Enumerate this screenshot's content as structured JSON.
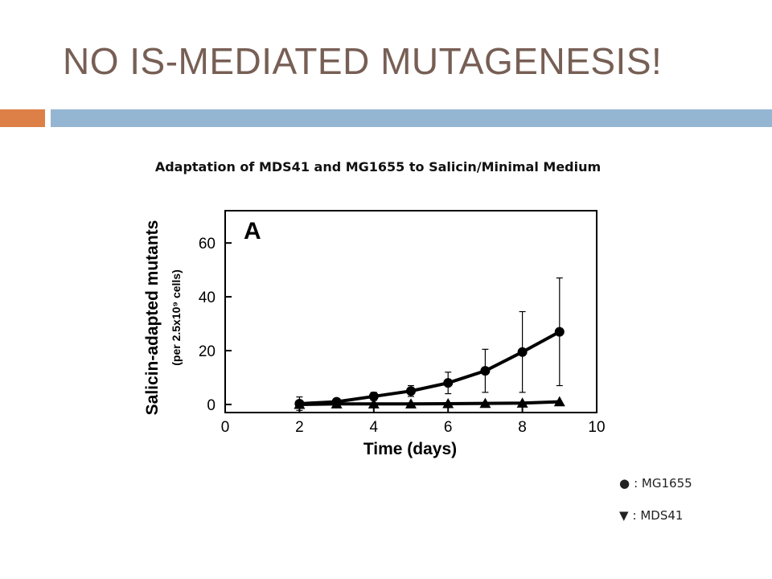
{
  "slide": {
    "title": "NO IS-MEDIATED MUTAGENESIS!",
    "accent_colors": {
      "title_text": "#775f55",
      "bar_left": "#dd8047",
      "bar_right": "#94b6d2"
    }
  },
  "chart_data": {
    "type": "line",
    "title": "Adaptation of MDS41 and MG1655 to Salicin/Minimal Medium",
    "panel_label": "A",
    "xlabel": "Time (days)",
    "ylabel": "Salicin-adapted mutants",
    "ylabel_sub": "(per 2.5x10⁹ cells)",
    "xlim": [
      0,
      10
    ],
    "ylim": [
      -3,
      72
    ],
    "xticks": [
      0,
      2,
      4,
      6,
      8,
      10
    ],
    "yticks": [
      0,
      20,
      40,
      60
    ],
    "grid": false,
    "series": [
      {
        "name": "MG1655",
        "marker": "circle",
        "x": [
          2,
          3,
          4,
          5,
          6,
          7,
          8,
          9
        ],
        "y": [
          0.3,
          1,
          3,
          5,
          8,
          12.5,
          19.5,
          27
        ],
        "err": [
          2.5,
          1,
          1.5,
          2,
          4,
          8,
          15,
          20
        ]
      },
      {
        "name": "MDS41",
        "marker": "triangle",
        "x": [
          2,
          3,
          4,
          5,
          6,
          7,
          8,
          9
        ],
        "y": [
          0,
          0.2,
          0.2,
          0.2,
          0.3,
          0.4,
          0.5,
          1
        ],
        "err": [
          0,
          0,
          0,
          0,
          0,
          0,
          0,
          0
        ]
      }
    ]
  },
  "legend": [
    {
      "symbol": "●",
      "text": ": MG1655"
    },
    {
      "symbol": "▼",
      "text": ": MDS41"
    }
  ]
}
